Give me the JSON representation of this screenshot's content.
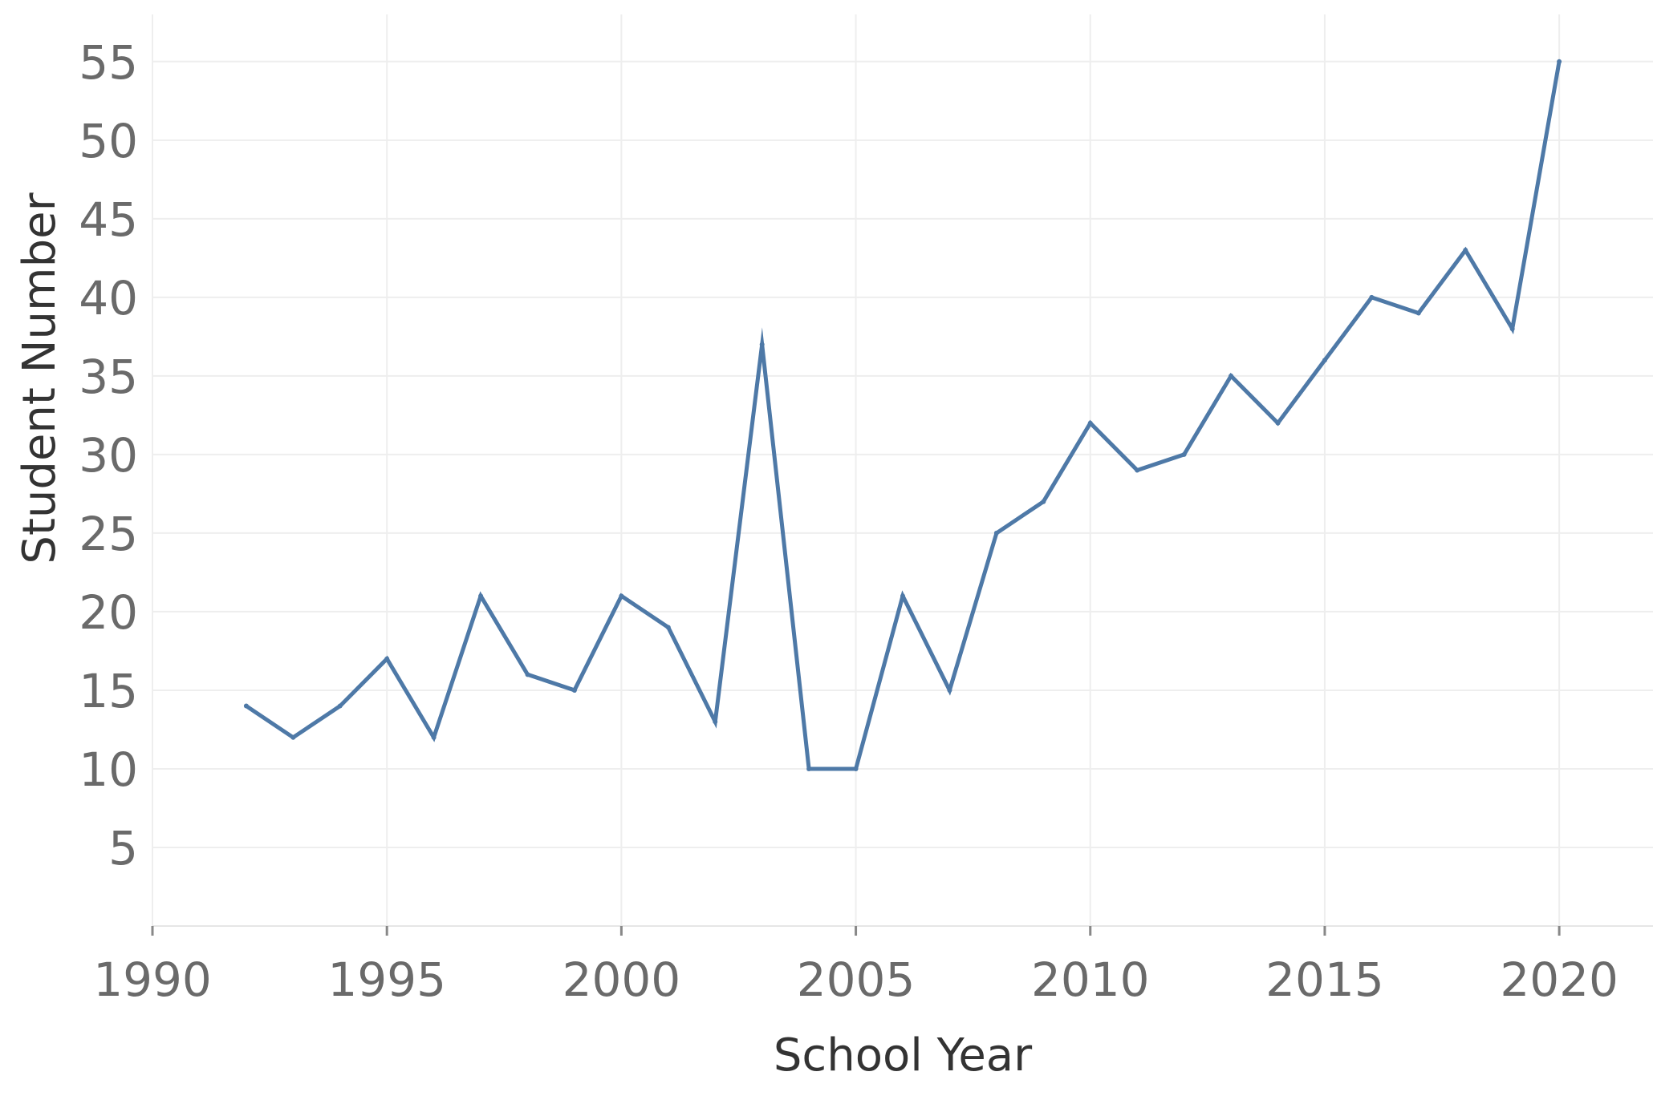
{
  "chart_data": {
    "type": "line",
    "xlabel": "School Year",
    "ylabel": "Student Number",
    "x_ticks": [
      "1990",
      "1995",
      "2000",
      "2005",
      "2010",
      "2015",
      "2020"
    ],
    "y_ticks": [
      "5",
      "10",
      "15",
      "20",
      "25",
      "30",
      "35",
      "40",
      "45",
      "50",
      "55"
    ],
    "xlim": [
      1990,
      2022
    ],
    "ylim": [
      0,
      58
    ],
    "grid": true,
    "series": [
      {
        "color": "#4e79a7",
        "x": [
          1992,
          1993,
          1994,
          1995,
          1996,
          1997,
          1998,
          1999,
          2000,
          2001,
          2002,
          2003,
          2004,
          2005,
          2006,
          2007,
          2008,
          2009,
          2010,
          2011,
          2012,
          2013,
          2014,
          2015,
          2016,
          2017,
          2018,
          2019,
          2020
        ],
        "values": [
          14,
          12,
          14,
          17,
          12,
          21,
          16,
          15,
          21,
          19,
          13,
          37,
          10,
          10,
          21,
          15,
          25,
          27,
          32,
          29,
          30,
          35,
          32,
          36,
          40,
          39,
          43,
          38,
          55
        ]
      }
    ]
  }
}
